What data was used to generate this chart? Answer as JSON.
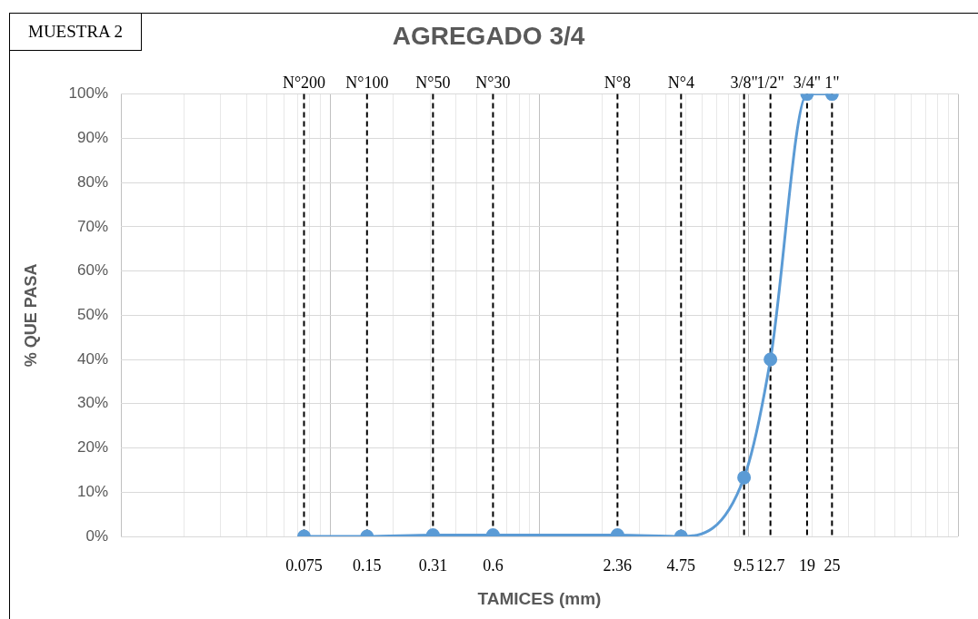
{
  "chart_data": {
    "type": "line",
    "title": "AGREGADO 3/4",
    "xlabel": "TAMICES (mm)",
    "ylabel": "% QUE PASA",
    "annotations": [
      "MUESTRA 2",
      {
        "text": "3/8\"",
        "x": 9.5,
        "y": 100
      },
      {
        "text": "1/2\"",
        "x": 12.7,
        "y": 100
      },
      {
        "text": "3/4\"",
        "x": 19,
        "y": 100
      },
      {
        "text": "1\"",
        "x": 25,
        "y": 100
      }
    ],
    "log": "x",
    "grid": true,
    "marker": "circle",
    "legend": false,
    "x": [
      0.075,
      0.15,
      0.31,
      0.6,
      2.36,
      4.75,
      9.5,
      12.7,
      19,
      25
    ],
    "series": [
      {
        "color": "#5b9bd5",
        "values": [
          0,
          0,
          0.3,
          0.3,
          0.3,
          0,
          13.3,
          40,
          100,
          100
        ]
      }
    ],
    "xlim": [
      0.01,
      100
    ],
    "xticks": [
      {
        "value": 0.01,
        "label": null
      },
      {
        "value": 0.02,
        "label": null
      },
      {
        "value": 0.03,
        "label": null
      },
      {
        "value": 0.04,
        "label": null
      },
      {
        "value": 0.05,
        "label": null
      },
      {
        "value": 0.06,
        "label": null
      },
      {
        "value": 0.07,
        "label": null
      },
      0.075,
      {
        "value": 0.08,
        "label": null
      },
      {
        "value": 0.09,
        "label": null
      },
      {
        "value": 0.1,
        "label": null
      },
      0.15,
      {
        "value": 0.2,
        "label": null
      },
      {
        "value": 0.3,
        "label": null
      },
      0.31,
      {
        "value": 0.4,
        "label": null
      },
      {
        "value": 0.5,
        "label": null
      },
      0.6,
      {
        "value": 0.7,
        "label": null
      },
      {
        "value": 0.8,
        "label": null
      },
      {
        "value": 0.9,
        "label": null
      },
      {
        "value": 1,
        "label": null
      },
      {
        "value": 2,
        "label": null
      },
      2.36,
      {
        "value": 3,
        "label": null
      },
      {
        "value": 4,
        "label": null
      },
      4.75,
      {
        "value": 5,
        "label": null
      },
      {
        "value": 6,
        "label": null
      },
      {
        "value": 7,
        "label": null
      },
      {
        "value": 8,
        "label": null
      },
      {
        "value": 9,
        "label": null
      },
      9.5,
      {
        "value": 10,
        "label": null
      },
      12.7,
      {
        "value": 20,
        "label": null
      },
      19,
      25,
      {
        "value": 30,
        "label": null
      },
      {
        "value": 40,
        "label": null
      },
      {
        "value": 50,
        "label": null
      },
      {
        "value": 60,
        "label": null
      },
      {
        "value": 70,
        "label": null
      },
      {
        "value": 80,
        "label": null
      },
      {
        "value": 90,
        "label": null
      },
      {
        "value": 100,
        "label": null
      }
    ],
    "ylim": [
      0,
      100
    ],
    "yticks": [
      {
        "value": 0,
        "label": "0%"
      },
      {
        "value": 10,
        "label": "10%"
      },
      {
        "value": 20,
        "label": "20%"
      },
      {
        "value": 30,
        "label": "30%"
      },
      {
        "value": 40,
        "label": "40%"
      },
      {
        "value": 50,
        "label": "50%"
      },
      {
        "value": 60,
        "label": "60%"
      },
      {
        "value": 70,
        "label": "70%"
      },
      {
        "value": 80,
        "label": "80%"
      },
      {
        "value": 90,
        "label": "90%"
      },
      {
        "value": 100,
        "label": "100%"
      }
    ],
    "ref_lines": [
      {
        "axis": "x",
        "value": 0.075,
        "label": "N°200",
        "line_style": "dashed",
        "color": "#000000"
      },
      {
        "axis": "x",
        "value": 0.15,
        "label": "N°100",
        "line_style": "dashed",
        "color": "#000000"
      },
      {
        "axis": "x",
        "value": 0.31,
        "label": "N°50",
        "line_style": "dashed",
        "color": "#000000"
      },
      {
        "axis": "x",
        "value": 0.6,
        "label": "N°30",
        "line_style": "dashed",
        "color": "#000000"
      },
      {
        "axis": "x",
        "value": 2.36,
        "label": "N°8",
        "line_style": "dashed",
        "color": "#000000"
      },
      {
        "axis": "x",
        "value": 4.75,
        "label": "N°4",
        "line_style": "dashed",
        "color": "#000000"
      },
      {
        "axis": "x",
        "value": 9.5,
        "line_style": "dashed",
        "color": "#000000"
      },
      {
        "axis": "x",
        "value": 12.7,
        "line_style": "dashed",
        "color": "#000000"
      },
      {
        "axis": "x",
        "value": 19,
        "line_style": "dashed",
        "color": "#000000"
      },
      {
        "axis": "x",
        "value": 25,
        "line_style": "dashed",
        "color": "#000000"
      }
    ]
  }
}
